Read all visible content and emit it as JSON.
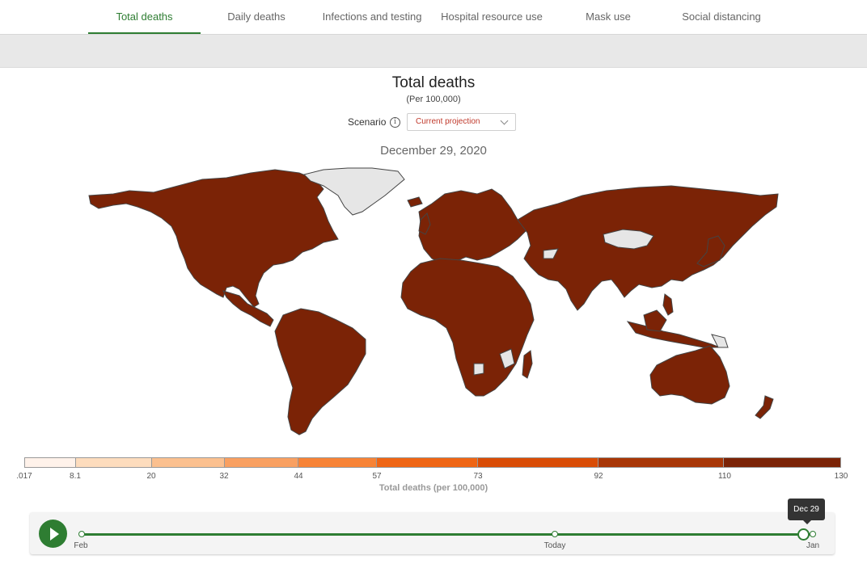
{
  "tabs": [
    {
      "label": "Total deaths",
      "active": true
    },
    {
      "label": "Daily deaths",
      "active": false
    },
    {
      "label": "Infections and testing",
      "active": false
    },
    {
      "label": "Hospital resource use",
      "active": false
    },
    {
      "label": "Mask use",
      "active": false
    },
    {
      "label": "Social distancing",
      "active": false
    }
  ],
  "header": {
    "title": "Total deaths",
    "subtitle": "(Per 100,000)"
  },
  "scenario": {
    "label": "Scenario",
    "info_icon": "info-icon",
    "selected": "Current projection"
  },
  "map": {
    "date": "December 29, 2020",
    "fill_color": "#7b2306",
    "no_data_color": "#e6e6e6",
    "border_color": "#444444"
  },
  "legend": {
    "title": "Total deaths (per 100,000)",
    "ticks": [
      ".017",
      "8.1",
      "20",
      "32",
      "44",
      "57",
      "73",
      "92",
      "110",
      "130"
    ],
    "colors": [
      "#fff2ea",
      "#fddcbd",
      "#fbc08f",
      "#f9a061",
      "#f78336",
      "#ef6514",
      "#d94c05",
      "#a83606",
      "#7b2306"
    ]
  },
  "timeline": {
    "labels": {
      "start": "Feb",
      "today": "Today",
      "end": "Jan"
    },
    "tooltip": "Dec 29",
    "play_icon": "play-icon",
    "progress": 0.987
  }
}
